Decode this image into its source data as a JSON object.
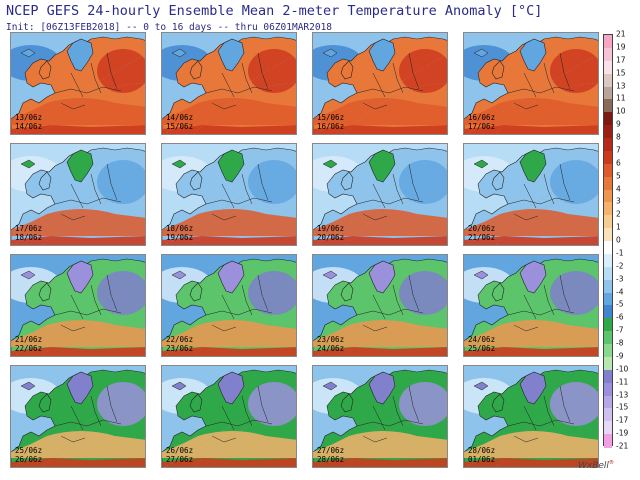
{
  "header": {
    "title": "NCEP GEFS 24-hourly Ensemble Mean 2-meter Temperature Anomaly [°C]",
    "subtitle": "Init: [06Z13FEB2018] -- 0 to 16 days -- thru 06Z01MAR2018"
  },
  "panels": [
    {
      "line1": "13/06z",
      "line2": "14/06z",
      "regime": 0
    },
    {
      "line1": "14/06z",
      "line2": "15/06z",
      "regime": 0
    },
    {
      "line1": "15/06z",
      "line2": "16/06z",
      "regime": 0
    },
    {
      "line1": "16/06z",
      "line2": "17/06z",
      "regime": 0
    },
    {
      "line1": "17/06z",
      "line2": "18/06z",
      "regime": 1
    },
    {
      "line1": "18/06z",
      "line2": "19/06z",
      "regime": 1
    },
    {
      "line1": "19/06z",
      "line2": "20/06z",
      "regime": 1
    },
    {
      "line1": "20/06z",
      "line2": "21/06z",
      "regime": 1
    },
    {
      "line1": "21/06z",
      "line2": "22/06z",
      "regime": 2
    },
    {
      "line1": "22/06z",
      "line2": "23/06z",
      "regime": 2
    },
    {
      "line1": "23/06z",
      "line2": "24/06z",
      "regime": 2
    },
    {
      "line1": "24/06z",
      "line2": "25/06z",
      "regime": 2
    },
    {
      "line1": "25/06z",
      "line2": "26/06z",
      "regime": 3
    },
    {
      "line1": "26/06z",
      "line2": "27/06z",
      "regime": 3
    },
    {
      "line1": "27/06z",
      "line2": "28/06z",
      "regime": 3
    },
    {
      "line1": "28/06z",
      "line2": "01/06z",
      "regime": 3
    }
  ],
  "colorbar": {
    "ticks": [
      "21",
      "19",
      "17",
      "15",
      "13",
      "11",
      "10",
      "9",
      "8",
      "7",
      "6",
      "5",
      "4",
      "3",
      "2",
      "1",
      "0",
      "-1",
      "-2",
      "-3",
      "-4",
      "-5",
      "-6",
      "-7",
      "-8",
      "-9",
      "-10",
      "-11",
      "-13",
      "-15",
      "-17",
      "-19",
      "-21"
    ],
    "colors": [
      "#f4a6c4",
      "#f7c3d6",
      "#fbe0ea",
      "#d9c9c2",
      "#b8a49a",
      "#8b6a5a",
      "#7a1a12",
      "#9c1f14",
      "#b52a18",
      "#cc3a1e",
      "#de5a2a",
      "#e8773a",
      "#ef9550",
      "#f4b26c",
      "#f7cc90",
      "#fae3b8",
      "#ffffff",
      "#dbeefb",
      "#b7dcf5",
      "#8ec3ec",
      "#62a6e0",
      "#3f85cf",
      "#2fa84a",
      "#5cc46a",
      "#8ad88c",
      "#b6e8b0",
      "#8080cc",
      "#9a90dc",
      "#b4a8e6",
      "#cfc0ef",
      "#e6d8f6",
      "#f2a0e6"
    ]
  },
  "logo": "WxBell"
}
